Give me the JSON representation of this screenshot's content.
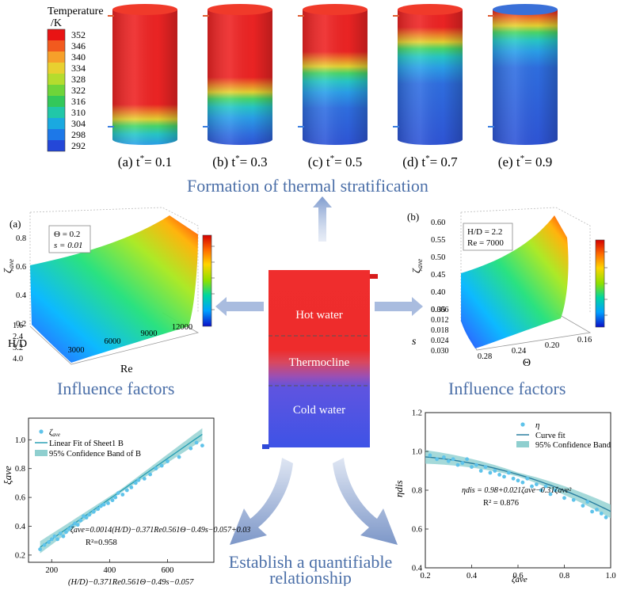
{
  "colorbar": {
    "title_line1": "Temperature",
    "title_line2": "/K",
    "ticks": [
      "352",
      "346",
      "340",
      "334",
      "328",
      "322",
      "316",
      "310",
      "304",
      "298",
      "292"
    ],
    "colors": [
      "#e81414",
      "#f25a1e",
      "#f6a02a",
      "#e8d030",
      "#b5dc2e",
      "#6fd43a",
      "#33c85a",
      "#21c7a8",
      "#1aa9e0",
      "#1d78e8",
      "#2447d8"
    ]
  },
  "tanks": [
    {
      "prefix": "(a) t",
      "sup": "*",
      "value": "= 0.1",
      "hot": 0.72
    },
    {
      "prefix": "(b) t",
      "sup": "*",
      "value": "= 0.3",
      "hot": 0.52
    },
    {
      "prefix": "(c) t",
      "sup": "*",
      "value": "= 0.5",
      "hot": 0.33
    },
    {
      "prefix": "(d) t",
      "sup": "*",
      "value": "= 0.7",
      "hot": 0.15
    },
    {
      "prefix": "(e) t",
      "sup": "*",
      "value": "= 0.9",
      "hot": 0.03
    }
  ],
  "captions": {
    "stratification": "Formation of thermal stratification",
    "influence_left": "Influence factors",
    "influence_right": "Influence factors",
    "relationship_line1": "Establish a quantifiable",
    "relationship_line2": "relationship"
  },
  "center_tank": {
    "hot": "Hot water",
    "thermocline": "Thermocline",
    "cold": "Cold water"
  },
  "surface_a": {
    "panel": "(a)",
    "box_line1": "Θ = 0.2",
    "box_line2": "s = 0.01",
    "z_label": "ζ",
    "z_sub": "ave",
    "z_ticks": [
      "0.8",
      "0.6",
      "0.4",
      "0.2"
    ],
    "hd_label": "H/D",
    "hd_ticks": [
      "1.6",
      "2.4",
      "3.2",
      "4.0"
    ],
    "re_label": "Re",
    "re_ticks": [
      "3000",
      "6000",
      "9000",
      "12000"
    ]
  },
  "surface_b": {
    "panel": "(b)",
    "box_line1": "H/D = 2.2",
    "box_line2": "Re = 7000",
    "z_label": "ζ",
    "z_sub": "ave",
    "z_ticks": [
      "0.60",
      "0.55",
      "0.50",
      "0.45",
      "0.40",
      "0.35"
    ],
    "s_label": "s",
    "s_ticks": [
      "0.006",
      "0.012",
      "0.018",
      "0.024",
      "0.030"
    ],
    "theta_label": "Θ",
    "theta_ticks": [
      "0.28",
      "0.24",
      "0.20",
      "0.16"
    ]
  },
  "fit_left": {
    "legend_points": "ζ",
    "legend_points_sub": "ave",
    "legend_line": "Linear Fit of Sheet1 B",
    "legend_band": "95% Confidence Band of B",
    "equation": "ζave=0.0014(H/D)−0.371Re0.561Θ−0.49s−0.057+0.03",
    "r2": "R²=0.958",
    "ylabel": "ξave",
    "xlabel": "(H/D)−0.371Re0.561Θ−0.49s−0.057",
    "y_ticks": [
      "1.0",
      "0.8",
      "0.6",
      "0.4",
      "0.2"
    ],
    "x_ticks": [
      "200",
      "400",
      "600"
    ]
  },
  "fit_right": {
    "legend_points": "η",
    "legend_line": "Curve fit",
    "legend_band": "95% Confidence Band",
    "equation": "ηdis = 0.98+0.021ζave−0.31ζave²",
    "r2": "R² = 0.876",
    "ylabel": "ηdis",
    "xlabel": "ζave",
    "y_ticks": [
      "1.2",
      "1.0",
      "0.8",
      "0.6",
      "0.4"
    ],
    "x_ticks": [
      "0.2",
      "0.4",
      "0.6",
      "0.8",
      "1.0"
    ]
  },
  "chart_data": [
    {
      "type": "scatter",
      "xlabel": "(H/D)^-0.371 Re^0.561 Θ^-0.49 s^-0.057",
      "ylabel": "ξave",
      "xlim": [
        120,
        760
      ],
      "ylim": [
        0.15,
        1.15
      ],
      "fit": {
        "slope": 0.0014,
        "intercept": 0.03
      },
      "x": [
        160,
        175,
        190,
        200,
        210,
        220,
        230,
        240,
        250,
        260,
        270,
        280,
        290,
        300,
        310,
        320,
        330,
        345,
        360,
        370,
        380,
        395,
        410,
        420,
        430,
        445,
        460,
        475,
        490,
        500,
        520,
        540,
        560,
        580,
        600,
        640,
        680,
        700,
        720
      ],
      "y": [
        0.24,
        0.27,
        0.29,
        0.31,
        0.33,
        0.31,
        0.35,
        0.33,
        0.36,
        0.38,
        0.4,
        0.42,
        0.41,
        0.44,
        0.47,
        0.46,
        0.48,
        0.5,
        0.52,
        0.54,
        0.55,
        0.56,
        0.58,
        0.6,
        0.63,
        0.62,
        0.65,
        0.67,
        0.7,
        0.72,
        0.73,
        0.76,
        0.8,
        0.82,
        0.85,
        0.88,
        0.94,
        0.98,
        0.96
      ]
    },
    {
      "type": "scatter",
      "xlabel": "ζave",
      "ylabel": "ηdis",
      "xlim": [
        0.2,
        1.0
      ],
      "ylim": [
        0.4,
        1.2
      ],
      "fit": {
        "a": 0.98,
        "b": 0.021,
        "c": -0.31
      },
      "x": [
        0.22,
        0.25,
        0.28,
        0.3,
        0.32,
        0.34,
        0.36,
        0.38,
        0.4,
        0.42,
        0.44,
        0.46,
        0.48,
        0.5,
        0.52,
        0.54,
        0.56,
        0.58,
        0.6,
        0.62,
        0.64,
        0.66,
        0.68,
        0.7,
        0.72,
        0.74,
        0.76,
        0.8,
        0.84,
        0.88,
        0.9,
        0.92,
        0.94,
        0.96,
        0.98
      ],
      "y": [
        0.98,
        0.96,
        0.97,
        0.95,
        0.96,
        0.93,
        0.94,
        0.96,
        0.92,
        0.93,
        0.9,
        0.92,
        0.89,
        0.9,
        0.88,
        0.87,
        0.89,
        0.86,
        0.85,
        0.84,
        0.86,
        0.82,
        0.83,
        0.8,
        0.82,
        0.78,
        0.8,
        0.76,
        0.75,
        0.72,
        0.74,
        0.69,
        0.7,
        0.68,
        0.66
      ]
    }
  ]
}
